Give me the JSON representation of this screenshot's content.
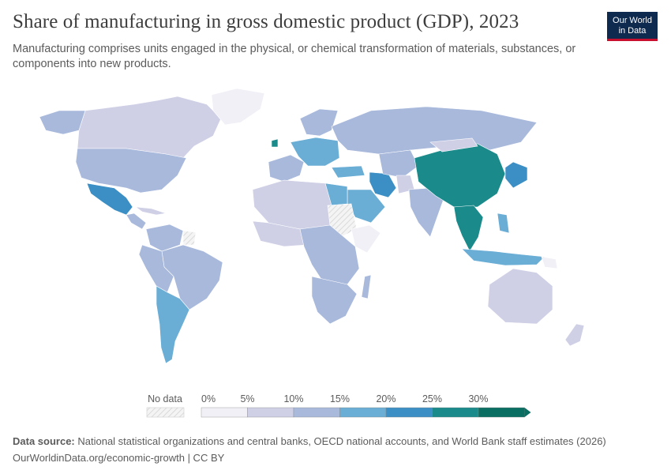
{
  "header": {
    "title": "Share of manufacturing in gross domestic product (GDP), 2023",
    "subtitle": "Manufacturing comprises units engaged in the physical, or chemical transformation of materials, substances, or components into new products."
  },
  "logo": {
    "line1": "Our World",
    "line2": "in Data"
  },
  "legend": {
    "no_data_label": "No data",
    "ticks": [
      "0%",
      "5%",
      "10%",
      "15%",
      "20%",
      "25%",
      "30%"
    ],
    "colors": [
      "#f2f0f7",
      "#cfcfe6",
      "#a8b9dc",
      "#6aaed6",
      "#3c8fc4",
      "#1a8a8a",
      "#0b6e63"
    ],
    "no_data_color": "#e8e8e8"
  },
  "chart_data": {
    "type": "choropleth",
    "title": "Share of manufacturing in gross domestic product (GDP), 2023",
    "unit": "%",
    "bins": [
      "0–5%",
      "5–10%",
      "10–15%",
      "15–20%",
      "20–25%",
      "25–30%",
      ">30%"
    ],
    "regions": [
      {
        "name": "Canada",
        "bin": "5–10%"
      },
      {
        "name": "United States",
        "bin": "10–15%"
      },
      {
        "name": "Alaska",
        "bin": "10–15%"
      },
      {
        "name": "Greenland",
        "bin": "0–5%"
      },
      {
        "name": "Mexico",
        "bin": "20–25%"
      },
      {
        "name": "Central America",
        "bin": "10–15%"
      },
      {
        "name": "Caribbean",
        "bin": "5–10%"
      },
      {
        "name": "Colombia & Venezuela",
        "bin": "10–15%"
      },
      {
        "name": "Guianas",
        "bin": "No data"
      },
      {
        "name": "Brazil",
        "bin": "10–15%"
      },
      {
        "name": "Peru & Bolivia",
        "bin": "10–15%"
      },
      {
        "name": "Argentina & Chile",
        "bin": "15–20%"
      },
      {
        "name": "Western Europe",
        "bin": "10–15%"
      },
      {
        "name": "Ireland",
        "bin": "25–30%"
      },
      {
        "name": "Central Europe",
        "bin": "15–20%"
      },
      {
        "name": "Scandinavia",
        "bin": "10–15%"
      },
      {
        "name": "Russia",
        "bin": "10–15%"
      },
      {
        "name": "Turkey",
        "bin": "15–20%"
      },
      {
        "name": "Iran",
        "bin": "20–25%"
      },
      {
        "name": "Saudi Arabia",
        "bin": "15–20%"
      },
      {
        "name": "Central Asia",
        "bin": "10–15%"
      },
      {
        "name": "Afghanistan",
        "bin": "5–10%"
      },
      {
        "name": "India",
        "bin": "10–15%"
      },
      {
        "name": "China",
        "bin": "25–30%"
      },
      {
        "name": "Mongolia",
        "bin": "5–10%"
      },
      {
        "name": "Korea & Japan",
        "bin": "20–25%"
      },
      {
        "name": "Southeast Asia",
        "bin": "25–30%"
      },
      {
        "name": "Indonesia",
        "bin": "15–20%"
      },
      {
        "name": "Philippines",
        "bin": "15–20%"
      },
      {
        "name": "North Africa",
        "bin": "5–10%"
      },
      {
        "name": "Egypt",
        "bin": "15–20%"
      },
      {
        "name": "Libya & Sudan",
        "bin": "No data"
      },
      {
        "name": "West Africa",
        "bin": "5–10%"
      },
      {
        "name": "Horn of Africa",
        "bin": "0–5%"
      },
      {
        "name": "Central Africa",
        "bin": "10–15%"
      },
      {
        "name": "Eswatini",
        "bin": "25–30%"
      },
      {
        "name": "Southern Africa",
        "bin": "10–15%"
      },
      {
        "name": "Madagascar",
        "bin": "10–15%"
      },
      {
        "name": "Australia",
        "bin": "5–10%"
      },
      {
        "name": "New Zealand",
        "bin": "5–10%"
      },
      {
        "name": "Papua New Guinea",
        "bin": "0–5%"
      }
    ]
  },
  "footer": {
    "source_label": "Data source:",
    "source_text": "National statistical organizations and central banks, OECD national accounts, and World Bank staff estimates (2026)",
    "link_text": "OurWorldinData.org/economic-growth | CC BY"
  }
}
